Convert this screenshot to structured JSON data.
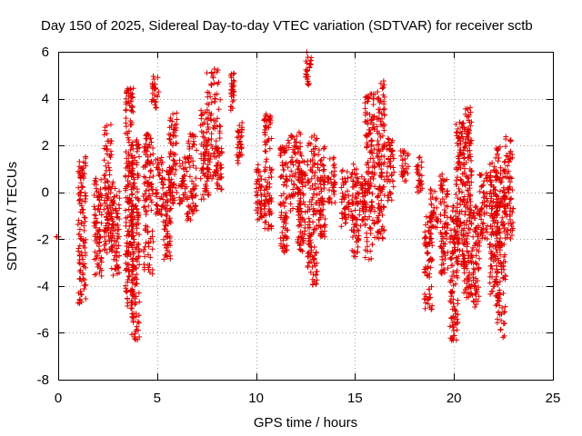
{
  "chart_data": {
    "type": "scatter",
    "title": "Day 150 of 2025, Sidereal Day-to-day VTEC variation (SDTVAR) for receiver sctb",
    "xlabel": "GPS time / hours",
    "ylabel": "SDTVAR / TECUs",
    "xlim": [
      0,
      25
    ],
    "ylim": [
      -8,
      6
    ],
    "xticks": [
      0,
      5,
      10,
      15,
      20,
      25
    ],
    "yticks": [
      -8,
      -6,
      -4,
      -2,
      0,
      2,
      4,
      6
    ],
    "grid": true,
    "marker": "+",
    "color": "#e00000",
    "clusters": [
      {
        "x": [
          -0.1,
          0.05
        ],
        "y": [
          -1.9,
          -1.9
        ]
      },
      {
        "x": [
          1.0,
          1.4
        ],
        "y": [
          -4.8,
          1.6
        ]
      },
      {
        "x": [
          1.8,
          2.2
        ],
        "y": [
          -3.7,
          0.6
        ]
      },
      {
        "x": [
          2.3,
          2.7
        ],
        "y": [
          -2.6,
          2.9
        ]
      },
      {
        "x": [
          2.7,
          3.1
        ],
        "y": [
          -3.6,
          0.5
        ]
      },
      {
        "x": [
          3.4,
          3.8
        ],
        "y": [
          -5.2,
          4.5
        ]
      },
      {
        "x": [
          3.7,
          4.1
        ],
        "y": [
          -6.4,
          2.3
        ]
      },
      {
        "x": [
          4.3,
          4.8
        ],
        "y": [
          -3.5,
          2.5
        ]
      },
      {
        "x": [
          4.7,
          5.1
        ],
        "y": [
          3.5,
          5.0
        ]
      },
      {
        "x": [
          4.9,
          5.3
        ],
        "y": [
          -1.0,
          1.5
        ]
      },
      {
        "x": [
          5.3,
          5.7
        ],
        "y": [
          -3.0,
          1.2
        ]
      },
      {
        "x": [
          5.6,
          6.0
        ],
        "y": [
          -0.5,
          3.5
        ]
      },
      {
        "x": [
          6.1,
          6.5
        ],
        "y": [
          -0.5,
          1.5
        ]
      },
      {
        "x": [
          6.5,
          7.0
        ],
        "y": [
          -1.2,
          2.5
        ]
      },
      {
        "x": [
          7.2,
          7.6
        ],
        "y": [
          -0.3,
          3.5
        ]
      },
      {
        "x": [
          7.5,
          8.2
        ],
        "y": [
          0.5,
          5.3
        ]
      },
      {
        "x": [
          7.9,
          8.3
        ],
        "y": [
          0.0,
          2.0
        ]
      },
      {
        "x": [
          8.7,
          8.9
        ],
        "y": [
          3.5,
          5.1
        ]
      },
      {
        "x": [
          9.0,
          9.3
        ],
        "y": [
          1.2,
          3.0
        ]
      },
      {
        "x": [
          10.0,
          10.3
        ],
        "y": [
          -1.2,
          1.2
        ]
      },
      {
        "x": [
          10.4,
          10.8
        ],
        "y": [
          -1.6,
          3.4
        ]
      },
      {
        "x": [
          11.2,
          11.6
        ],
        "y": [
          -2.6,
          2.0
        ]
      },
      {
        "x": [
          11.6,
          12.3
        ],
        "y": [
          -1.0,
          2.6
        ]
      },
      {
        "x": [
          12.1,
          12.5
        ],
        "y": [
          -2.6,
          2.0
        ]
      },
      {
        "x": [
          12.5,
          12.8
        ],
        "y": [
          4.5,
          6.0
        ]
      },
      {
        "x": [
          12.6,
          13.1
        ],
        "y": [
          -4.0,
          2.5
        ]
      },
      {
        "x": [
          13.1,
          13.5
        ],
        "y": [
          -2.0,
          2.0
        ]
      },
      {
        "x": [
          13.6,
          14.0
        ],
        "y": [
          -0.5,
          1.5
        ]
      },
      {
        "x": [
          14.3,
          14.7
        ],
        "y": [
          -1.5,
          1.0
        ]
      },
      {
        "x": [
          14.8,
          15.2
        ],
        "y": [
          -2.8,
          1.2
        ]
      },
      {
        "x": [
          15.2,
          15.6
        ],
        "y": [
          -1.5,
          0.8
        ]
      },
      {
        "x": [
          15.5,
          16.0
        ],
        "y": [
          -3.0,
          4.3
        ]
      },
      {
        "x": [
          16.1,
          16.5
        ],
        "y": [
          -2.0,
          4.8
        ]
      },
      {
        "x": [
          16.6,
          17.0
        ],
        "y": [
          -0.5,
          2.3
        ]
      },
      {
        "x": [
          17.3,
          17.7
        ],
        "y": [
          0.2,
          1.8
        ]
      },
      {
        "x": [
          18.1,
          18.4
        ],
        "y": [
          0.0,
          1.5
        ]
      },
      {
        "x": [
          18.5,
          18.9
        ],
        "y": [
          -5.1,
          -1.0
        ]
      },
      {
        "x": [
          18.8,
          19.2
        ],
        "y": [
          -1.5,
          0.2
        ]
      },
      {
        "x": [
          19.3,
          19.7
        ],
        "y": [
          -3.5,
          0.8
        ]
      },
      {
        "x": [
          19.8,
          20.2
        ],
        "y": [
          -6.4,
          -0.5
        ]
      },
      {
        "x": [
          20.1,
          20.5
        ],
        "y": [
          -3.2,
          3.0
        ]
      },
      {
        "x": [
          20.5,
          20.9
        ],
        "y": [
          -4.5,
          3.7
        ]
      },
      {
        "x": [
          20.8,
          21.3
        ],
        "y": [
          -5.0,
          -0.5
        ]
      },
      {
        "x": [
          21.3,
          21.7
        ],
        "y": [
          -2.0,
          1.0
        ]
      },
      {
        "x": [
          21.8,
          22.2
        ],
        "y": [
          -4.5,
          1.5
        ]
      },
      {
        "x": [
          22.1,
          22.6
        ],
        "y": [
          -6.2,
          2.0
        ]
      },
      {
        "x": [
          22.5,
          23.0
        ],
        "y": [
          -2.0,
          2.4
        ]
      }
    ]
  }
}
